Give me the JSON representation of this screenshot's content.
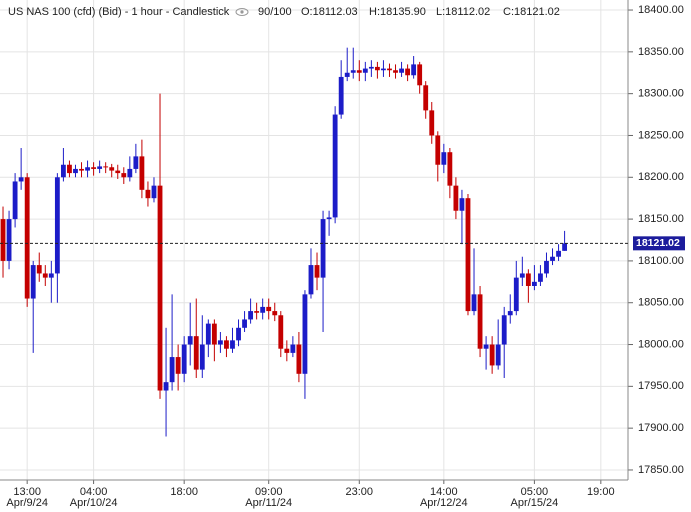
{
  "chart_data": {
    "type": "candlestick",
    "title": "US NAS 100 (cfd) (Bid) - 1 hour - Candlestick",
    "header": {
      "count": "90/100",
      "open": "O:18112.03",
      "high": "H:18135.90",
      "low": "L:18112.02",
      "close": "C:18121.02"
    },
    "categories": [
      null,
      null,
      null,
      null,
      "13:00",
      null,
      null,
      null,
      null,
      null,
      null,
      null,
      null,
      null,
      null,
      "04:00",
      null,
      null,
      null,
      null,
      null,
      null,
      null,
      null,
      null,
      null,
      null,
      null,
      null,
      null,
      "18:00",
      null,
      null,
      null,
      null,
      null,
      null,
      null,
      null,
      null,
      null,
      null,
      null,
      null,
      "09:00",
      null,
      null,
      null,
      null,
      null,
      null,
      null,
      null,
      null,
      null,
      null,
      null,
      null,
      null,
      "23:00",
      null,
      null,
      null,
      null,
      null,
      null,
      null,
      null,
      null,
      null,
      null,
      null,
      null,
      "14:00",
      null,
      null,
      null,
      null,
      null,
      null,
      null,
      null,
      null,
      null,
      null,
      null,
      null,
      null,
      "05:00",
      null,
      null,
      null,
      null,
      null,
      null,
      null,
      null,
      null,
      null,
      "19:00",
      null,
      null,
      null,
      null
    ],
    "dates": [
      null,
      null,
      null,
      null,
      "Apr/9/24",
      null,
      null,
      null,
      null,
      null,
      null,
      null,
      null,
      null,
      null,
      "Apr/10/24",
      null,
      null,
      null,
      null,
      null,
      null,
      null,
      null,
      null,
      null,
      null,
      null,
      null,
      null,
      null,
      null,
      null,
      null,
      null,
      null,
      null,
      null,
      null,
      null,
      null,
      null,
      null,
      null,
      "Apr/11/24",
      null,
      null,
      null,
      null,
      null,
      null,
      null,
      null,
      null,
      null,
      null,
      null,
      null,
      null,
      null,
      null,
      null,
      null,
      null,
      null,
      null,
      null,
      null,
      null,
      null,
      null,
      null,
      null,
      "Apr/12/24",
      null,
      null,
      null,
      null,
      null,
      null,
      null,
      null,
      null,
      null,
      null,
      null,
      null,
      null,
      "Apr/15/24",
      null,
      null,
      null,
      null,
      null,
      null,
      null,
      null,
      null,
      null,
      null,
      null,
      null,
      null,
      null
    ],
    "open": [
      18150,
      18100,
      18150,
      18195,
      18200,
      18055,
      18095,
      18085,
      18080,
      18085,
      18200,
      18215,
      18205,
      18210,
      18208,
      18212,
      18210,
      18213,
      18212,
      18208,
      18205,
      18200,
      18210,
      18225,
      18185,
      18175,
      18190,
      17945,
      17955,
      17985,
      17965,
      18000,
      18010,
      17970,
      18000,
      18025,
      18000,
      18005,
      17995,
      18005,
      18020,
      18030,
      18040,
      18038,
      18045,
      18040,
      18035,
      17995,
      17990,
      18000,
      17965,
      18060,
      18095,
      18080,
      18150,
      18152,
      18275,
      18320,
      18325,
      18328,
      18325,
      18330,
      18332,
      18328,
      18330,
      18328,
      18325,
      18330,
      18322,
      18335,
      18310,
      18280,
      18250,
      18215,
      18230,
      18190,
      18160,
      18175,
      18040,
      18060,
      17995,
      18000,
      17975,
      18000,
      18035,
      18040,
      18080,
      18085,
      18070,
      18075,
      18085,
      18100,
      18105,
      18112.03,
      null,
      null,
      null,
      null,
      null,
      null,
      null,
      null,
      null,
      null
    ],
    "high": [
      18165,
      18160,
      18205,
      18235,
      18205,
      18100,
      18110,
      18095,
      18100,
      18205,
      18235,
      18220,
      18215,
      18218,
      18220,
      18218,
      18220,
      18218,
      18216,
      18215,
      18212,
      18225,
      18240,
      18245,
      18195,
      18200,
      18300,
      18020,
      18060,
      18000,
      18010,
      18050,
      18055,
      18035,
      18030,
      18030,
      18015,
      18010,
      18020,
      18030,
      18040,
      18055,
      18050,
      18055,
      18055,
      18050,
      18040,
      18005,
      18010,
      18015,
      18065,
      18115,
      18110,
      18160,
      18160,
      18285,
      18340,
      18355,
      18355,
      18340,
      18338,
      18340,
      18338,
      18340,
      18336,
      18335,
      18338,
      18335,
      18345,
      18338,
      18315,
      18290,
      18255,
      18240,
      18235,
      18200,
      18185,
      18180,
      18115,
      18070,
      18010,
      18010,
      18030,
      18045,
      18060,
      18100,
      18105,
      18090,
      18095,
      18095,
      18110,
      18115,
      18120,
      18135.9,
      null,
      null,
      null,
      null,
      null,
      null,
      null,
      null,
      null,
      null
    ],
    "low": [
      18080,
      18090,
      18140,
      18185,
      18045,
      17990,
      18075,
      18070,
      18050,
      18050,
      18195,
      18200,
      18200,
      18200,
      18200,
      18202,
      18205,
      18205,
      18200,
      18198,
      18192,
      18195,
      18205,
      18175,
      18165,
      18170,
      17935,
      17890,
      17945,
      17945,
      17955,
      17975,
      17960,
      17960,
      17985,
      17980,
      17990,
      17985,
      17990,
      17998,
      18015,
      18025,
      18030,
      18030,
      18030,
      18028,
      17985,
      17980,
      17985,
      17955,
      17935,
      18055,
      18065,
      18015,
      18130,
      18145,
      18270,
      18315,
      18318,
      18315,
      18315,
      18320,
      18318,
      18320,
      18320,
      18318,
      18320,
      18315,
      18318,
      18300,
      18270,
      18240,
      18195,
      18205,
      18175,
      18150,
      18120,
      18035,
      18035,
      17985,
      17970,
      17965,
      17970,
      17960,
      18025,
      18035,
      18070,
      18050,
      18065,
      18070,
      18080,
      18095,
      18100,
      18112.02,
      null,
      null,
      null,
      null,
      null,
      null,
      null,
      null,
      null,
      null
    ],
    "close": [
      18100,
      18150,
      18195,
      18200,
      18055,
      18095,
      18085,
      18080,
      18085,
      18200,
      18215,
      18205,
      18210,
      18208,
      18212,
      18210,
      18213,
      18212,
      18208,
      18205,
      18200,
      18210,
      18225,
      18185,
      18175,
      18190,
      17945,
      17955,
      17985,
      17965,
      18000,
      18010,
      17970,
      18000,
      18025,
      18000,
      18005,
      17995,
      18005,
      18020,
      18030,
      18040,
      18038,
      18045,
      18040,
      18035,
      17995,
      17990,
      18000,
      17965,
      18060,
      18095,
      18080,
      18150,
      18152,
      18275,
      18320,
      18325,
      18328,
      18325,
      18330,
      18332,
      18328,
      18330,
      18328,
      18325,
      18330,
      18322,
      18335,
      18310,
      18280,
      18250,
      18215,
      18230,
      18190,
      18160,
      18175,
      18040,
      18060,
      17995,
      18000,
      17975,
      18000,
      18035,
      18040,
      18080,
      18085,
      18070,
      18075,
      18085,
      18100,
      18105,
      18112.03,
      18121.02,
      null,
      null,
      null,
      null,
      null,
      null,
      null,
      null,
      null,
      null
    ],
    "up_color": "#1c1cc8",
    "down_color": "#c40000",
    "last_price": 18121.02,
    "ylim": [
      17838,
      18412
    ],
    "yticks": [
      {
        "value": 17850,
        "label": "17850.00"
      },
      {
        "value": 17900,
        "label": "17900.00"
      },
      {
        "value": 17950,
        "label": "17950.00"
      },
      {
        "value": 18000,
        "label": "18000.00"
      },
      {
        "value": 18050,
        "label": "18050.00"
      },
      {
        "value": 18100,
        "label": "18100.00"
      },
      {
        "value": 18150,
        "label": "18150.00"
      },
      {
        "value": 18200,
        "label": "18200.00"
      },
      {
        "value": 18250,
        "label": "18250.00"
      },
      {
        "value": 18300,
        "label": "18300.00"
      },
      {
        "value": 18350,
        "label": "18350.00"
      },
      {
        "value": 18400,
        "label": "18400.00"
      }
    ],
    "grid": true
  }
}
